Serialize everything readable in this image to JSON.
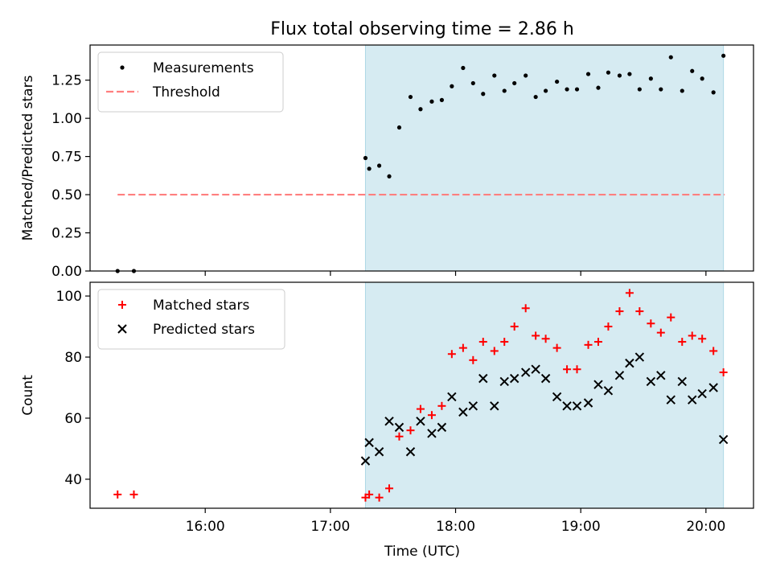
{
  "figure": {
    "title": "Flux total observing time = 2.86 h",
    "xlabel": "Time (UTC)",
    "xticks": [
      {
        "t": 16.0,
        "label": "16:00"
      },
      {
        "t": 17.0,
        "label": "17:00"
      },
      {
        "t": 18.0,
        "label": "18:00"
      },
      {
        "t": 19.0,
        "label": "19:00"
      },
      {
        "t": 20.0,
        "label": "20:00"
      }
    ],
    "xlim": [
      15.08,
      20.38
    ],
    "span": [
      17.28,
      20.14
    ],
    "colors": {
      "span": "#add8e6",
      "threshold": "#ff7f7f",
      "matched": "#ff0000",
      "predicted": "#000000",
      "measurements": "#000000"
    }
  },
  "chart_data": [
    {
      "type": "scatter",
      "ylabel": "Matched/Predicted stars",
      "ylim": [
        0,
        1.48
      ],
      "yticks": [
        "0.00",
        "0.25",
        "0.50",
        "0.75",
        "1.00",
        "1.25"
      ],
      "ytick_values": [
        0,
        0.25,
        0.5,
        0.75,
        1.0,
        1.25
      ],
      "legend_position": "top-left",
      "threshold": {
        "name": "Threshold",
        "y": 0.5,
        "x_range": [
          15.3,
          20.15
        ]
      },
      "series": [
        {
          "name": "Measurements",
          "points": [
            [
              15.3,
              0.0
            ],
            [
              15.43,
              0.0
            ],
            [
              17.28,
              0.74
            ],
            [
              17.31,
              0.67
            ],
            [
              17.39,
              0.69
            ],
            [
              17.47,
              0.62
            ],
            [
              17.55,
              0.94
            ],
            [
              17.64,
              1.14
            ],
            [
              17.72,
              1.06
            ],
            [
              17.81,
              1.11
            ],
            [
              17.89,
              1.12
            ],
            [
              17.97,
              1.21
            ],
            [
              18.06,
              1.33
            ],
            [
              18.14,
              1.23
            ],
            [
              18.22,
              1.16
            ],
            [
              18.31,
              1.28
            ],
            [
              18.39,
              1.18
            ],
            [
              18.47,
              1.23
            ],
            [
              18.56,
              1.28
            ],
            [
              18.64,
              1.14
            ],
            [
              18.72,
              1.18
            ],
            [
              18.81,
              1.24
            ],
            [
              18.89,
              1.19
            ],
            [
              18.97,
              1.19
            ],
            [
              19.06,
              1.29
            ],
            [
              19.14,
              1.2
            ],
            [
              19.22,
              1.3
            ],
            [
              19.31,
              1.28
            ],
            [
              19.39,
              1.29
            ],
            [
              19.47,
              1.19
            ],
            [
              19.56,
              1.26
            ],
            [
              19.64,
              1.19
            ],
            [
              19.72,
              1.4
            ],
            [
              19.81,
              1.18
            ],
            [
              19.89,
              1.31
            ],
            [
              19.97,
              1.26
            ],
            [
              20.06,
              1.17
            ],
            [
              20.14,
              1.41
            ]
          ]
        }
      ]
    },
    {
      "type": "scatter",
      "ylabel": "Count",
      "ylim": [
        30.5,
        104.5
      ],
      "yticks": [
        "40",
        "60",
        "80",
        "100"
      ],
      "ytick_values": [
        40,
        60,
        80,
        100
      ],
      "legend_position": "top-left",
      "series": [
        {
          "name": "Matched stars",
          "marker": "plus",
          "points": [
            [
              15.3,
              35
            ],
            [
              15.43,
              35
            ],
            [
              17.28,
              34
            ],
            [
              17.31,
              35
            ],
            [
              17.39,
              34
            ],
            [
              17.47,
              37
            ],
            [
              17.55,
              54
            ],
            [
              17.64,
              56
            ],
            [
              17.72,
              63
            ],
            [
              17.81,
              61
            ],
            [
              17.89,
              64
            ],
            [
              17.97,
              81
            ],
            [
              18.06,
              83
            ],
            [
              18.14,
              79
            ],
            [
              18.22,
              85
            ],
            [
              18.31,
              82
            ],
            [
              18.39,
              85
            ],
            [
              18.47,
              90
            ],
            [
              18.56,
              96
            ],
            [
              18.64,
              87
            ],
            [
              18.72,
              86
            ],
            [
              18.81,
              83
            ],
            [
              18.89,
              76
            ],
            [
              18.97,
              76
            ],
            [
              19.06,
              84
            ],
            [
              19.14,
              85
            ],
            [
              19.22,
              90
            ],
            [
              19.31,
              95
            ],
            [
              19.39,
              101
            ],
            [
              19.47,
              95
            ],
            [
              19.56,
              91
            ],
            [
              19.64,
              88
            ],
            [
              19.72,
              93
            ],
            [
              19.81,
              85
            ],
            [
              19.89,
              87
            ],
            [
              19.97,
              86
            ],
            [
              20.06,
              82
            ],
            [
              20.14,
              75
            ]
          ]
        },
        {
          "name": "Predicted stars",
          "marker": "x",
          "points": [
            [
              17.28,
              46
            ],
            [
              17.31,
              52
            ],
            [
              17.39,
              49
            ],
            [
              17.47,
              59
            ],
            [
              17.55,
              57
            ],
            [
              17.64,
              49
            ],
            [
              17.72,
              59
            ],
            [
              17.81,
              55
            ],
            [
              17.89,
              57
            ],
            [
              17.97,
              67
            ],
            [
              18.06,
              62
            ],
            [
              18.14,
              64
            ],
            [
              18.22,
              73
            ],
            [
              18.31,
              64
            ],
            [
              18.39,
              72
            ],
            [
              18.47,
              73
            ],
            [
              18.56,
              75
            ],
            [
              18.64,
              76
            ],
            [
              18.72,
              73
            ],
            [
              18.81,
              67
            ],
            [
              18.89,
              64
            ],
            [
              18.97,
              64
            ],
            [
              19.06,
              65
            ],
            [
              19.14,
              71
            ],
            [
              19.22,
              69
            ],
            [
              19.31,
              74
            ],
            [
              19.39,
              78
            ],
            [
              19.47,
              80
            ],
            [
              19.56,
              72
            ],
            [
              19.64,
              74
            ],
            [
              19.72,
              66
            ],
            [
              19.81,
              72
            ],
            [
              19.89,
              66
            ],
            [
              19.97,
              68
            ],
            [
              20.06,
              70
            ],
            [
              20.14,
              53
            ]
          ]
        }
      ]
    }
  ]
}
